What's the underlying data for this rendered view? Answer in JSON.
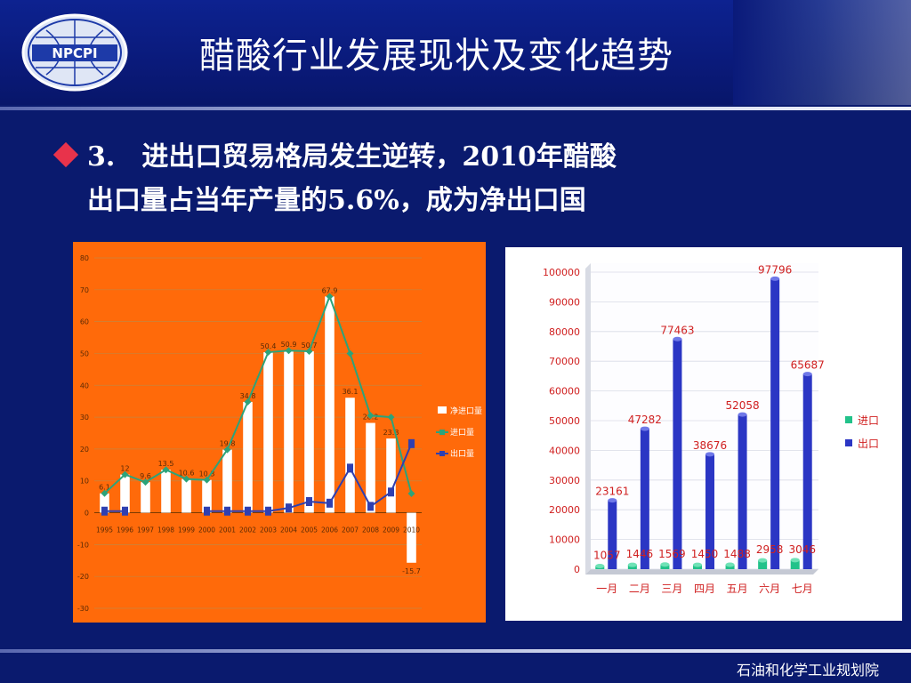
{
  "header": {
    "logo_text": "NPCPI",
    "title": "醋酸行业发展现状及变化趋势"
  },
  "bullet": {
    "line1": "3.　进出口贸易格局发生逆转，2010年醋酸",
    "line2": "出口量占当年产量的5.6%，成为净出口国"
  },
  "footer": {
    "text": "石油和化学工业规划院"
  },
  "colors": {
    "left_bg": "#ff6a0a",
    "net_bar": "#ffffff",
    "import_line": "#2ca37a",
    "export_line": "#2f3fb0",
    "right_import_bar": "#22c28a",
    "right_export_bar": "#2b36c4"
  },
  "chart_data": [
    {
      "type": "bar",
      "categories": [
        "1995",
        "1996",
        "1997",
        "1998",
        "1999",
        "2000",
        "2001",
        "2002",
        "2003",
        "2004",
        "2005",
        "2006",
        "2007",
        "2008",
        "2009",
        "2010"
      ],
      "ylim": [
        -30,
        80
      ],
      "yticks": [
        -30,
        -20,
        -10,
        0,
        10,
        20,
        30,
        40,
        50,
        60,
        70,
        80
      ],
      "grid": true,
      "legend_position": "right",
      "series": [
        {
          "name": "净进口量",
          "kind": "bar",
          "values": [
            6.1,
            12,
            9.6,
            13.5,
            10.6,
            10.3,
            19.8,
            34.8,
            50.4,
            50.9,
            50.7,
            67.9,
            36.1,
            28.2,
            23.3,
            -15.7
          ],
          "labels": [
            "6.1",
            "12",
            "9.6",
            "13.5",
            "10.6",
            "10.3",
            "19.8",
            "34.8",
            "50.4",
            "50.9",
            "50.7",
            "67.9",
            "36.1",
            "28.2",
            "23.3",
            "-15.7"
          ]
        },
        {
          "name": "进口量",
          "kind": "line",
          "values": [
            6.1,
            12,
            9.6,
            13.5,
            10.6,
            10.3,
            19.8,
            34.8,
            50.4,
            50.9,
            50.7,
            67.9,
            50,
            30.5,
            30,
            6
          ]
        },
        {
          "name": "出口量",
          "kind": "line",
          "values": [
            0.5,
            0.5,
            null,
            null,
            null,
            0.5,
            0.5,
            0.5,
            0.5,
            1.5,
            3.5,
            3,
            14,
            2,
            6.5,
            21.7
          ]
        }
      ]
    },
    {
      "type": "bar",
      "categories": [
        "一月",
        "二月",
        "三月",
        "四月",
        "五月",
        "六月",
        "七月"
      ],
      "ylim": [
        0,
        100000
      ],
      "yticks": [
        0,
        10000,
        20000,
        30000,
        40000,
        50000,
        60000,
        70000,
        80000,
        90000,
        100000
      ],
      "legend_position": "right",
      "series": [
        {
          "name": "进口",
          "values": [
            1057,
            1446,
            1569,
            1450,
            1488,
            2958,
            3046
          ],
          "labels": [
            "1057",
            "1446",
            "1569",
            "1450",
            "1488",
            "2958",
            "3046"
          ]
        },
        {
          "name": "出口",
          "values": [
            23161,
            47282,
            77463,
            38676,
            52058,
            97796,
            65687
          ],
          "labels": [
            "23161",
            "47282",
            "77463",
            "38676",
            "52058",
            "97796",
            "65687"
          ]
        }
      ]
    }
  ]
}
